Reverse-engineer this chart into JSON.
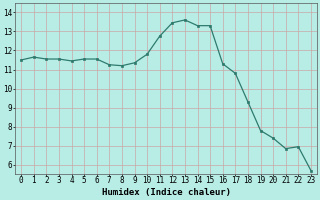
{
  "x": [
    0,
    1,
    2,
    3,
    4,
    5,
    6,
    7,
    8,
    9,
    10,
    11,
    12,
    13,
    14,
    15,
    16,
    17,
    18,
    19,
    20,
    21,
    22,
    23
  ],
  "y": [
    11.5,
    11.65,
    11.55,
    11.55,
    11.45,
    11.55,
    11.55,
    11.25,
    11.2,
    11.35,
    11.8,
    12.75,
    13.45,
    13.6,
    13.3,
    13.3,
    11.3,
    10.8,
    9.3,
    7.8,
    7.4,
    6.85,
    6.95,
    5.7
  ],
  "line_color": "#2e7b6e",
  "marker": "s",
  "marker_size": 1.8,
  "linewidth": 0.9,
  "bg_color": "#b8ede6",
  "grid_color_minor": "#d8c8c8",
  "grid_color_major": "#c0b0b0",
  "xlabel": "Humidex (Indice chaleur)",
  "xlabel_fontsize": 6.5,
  "xtick_labels": [
    "0",
    "1",
    "2",
    "3",
    "4",
    "5",
    "6",
    "7",
    "8",
    "9",
    "10",
    "11",
    "12",
    "13",
    "14",
    "15",
    "16",
    "17",
    "18",
    "19",
    "20",
    "21",
    "22",
    "23"
  ],
  "ytick_labels": [
    "6",
    "7",
    "8",
    "9",
    "10",
    "11",
    "12",
    "13",
    "14"
  ],
  "ylim": [
    5.5,
    14.5
  ],
  "xlim": [
    -0.5,
    23.5
  ],
  "yticks": [
    6,
    7,
    8,
    9,
    10,
    11,
    12,
    13,
    14
  ],
  "tick_fontsize": 5.5
}
